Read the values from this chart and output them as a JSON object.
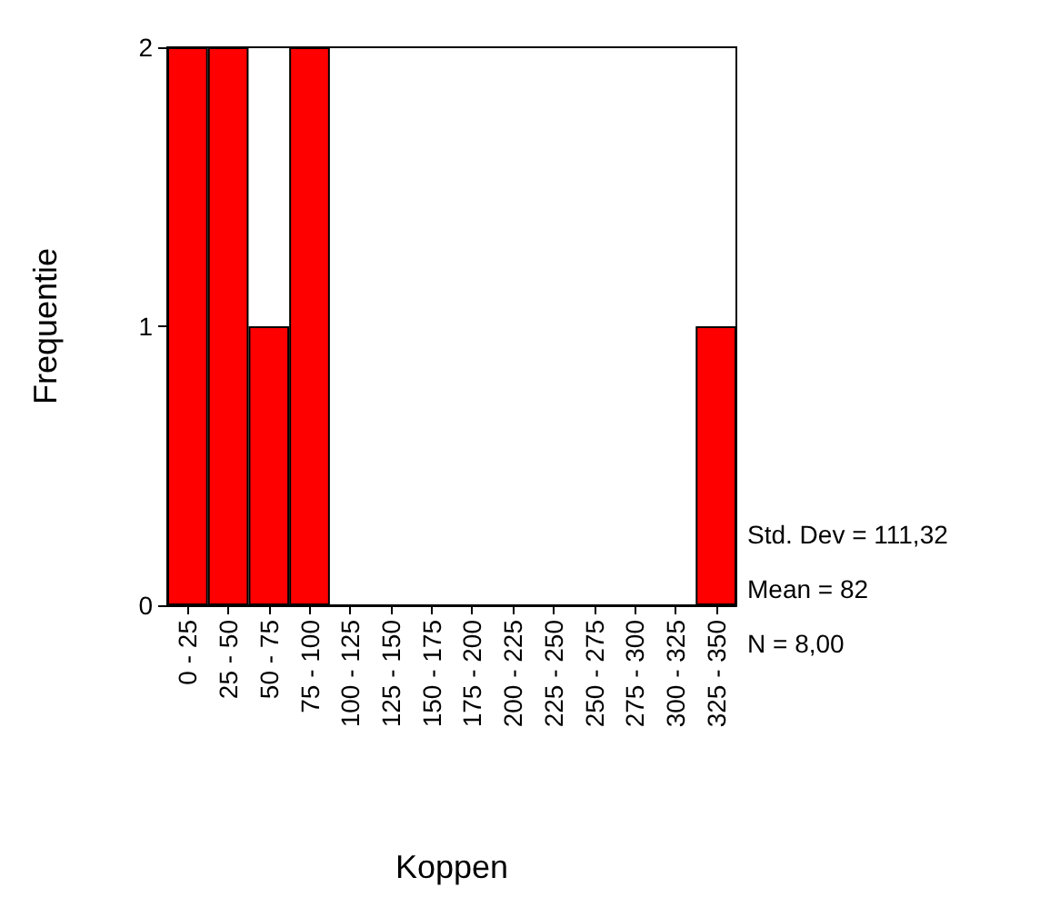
{
  "chart_data": {
    "type": "bar",
    "xlabel": "Koppen",
    "ylabel": "Frequentie",
    "categories": [
      "0 - 25",
      "25 - 50",
      "50 - 75",
      "75 - 100",
      "100 - 125",
      "125 - 150",
      "150 - 175",
      "175 - 200",
      "200 - 225",
      "225 - 250",
      "250 - 275",
      "275 - 300",
      "300 - 325",
      "325 - 350"
    ],
    "values": [
      2,
      2,
      1,
      2,
      0,
      0,
      0,
      0,
      0,
      0,
      0,
      0,
      0,
      1
    ],
    "color": "#ff0000",
    "ylim": [
      0,
      2
    ],
    "yticks": [
      0,
      1,
      2
    ],
    "grid": false,
    "annotations": [
      "Std. Dev = 111,32",
      "Mean = 82",
      "N = 8,00"
    ]
  }
}
